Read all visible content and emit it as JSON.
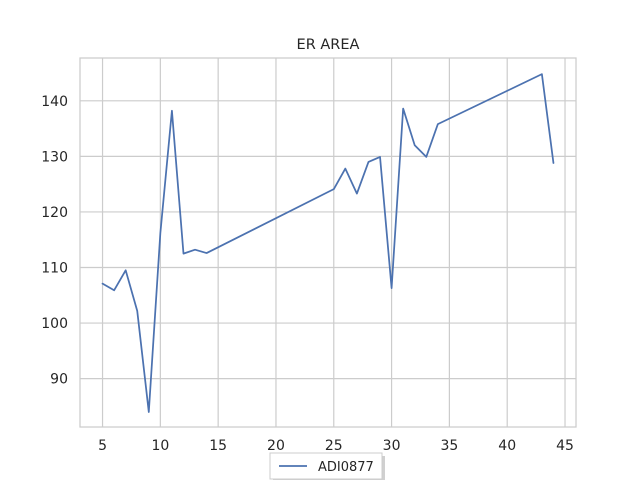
{
  "chart_data": {
    "type": "line",
    "title": "ER AREA",
    "xlabel": "",
    "ylabel": "",
    "xlim": [
      3.05,
      45.95
    ],
    "ylim": [
      81.3,
      147.7
    ],
    "xticks": [
      5,
      10,
      15,
      20,
      25,
      30,
      35,
      40,
      45
    ],
    "yticks": [
      90,
      100,
      110,
      120,
      130,
      140
    ],
    "grid": true,
    "legend_position": "bottom-center",
    "colors": {
      "series": "#4c72b0",
      "grid": "#cccccc",
      "axes": "#cccccc",
      "text": "#262626"
    },
    "series": [
      {
        "name": "ADI0877",
        "x": [
          5,
          6,
          7,
          8,
          9,
          10,
          11,
          12,
          13,
          14,
          25,
          26,
          27,
          28,
          29,
          30,
          31,
          32,
          33,
          34,
          43,
          44
        ],
        "values": [
          107.1,
          105.9,
          109.5,
          102.2,
          84.0,
          116.2,
          138.2,
          112.5,
          113.2,
          112.6,
          124.1,
          127.8,
          123.3,
          129.0,
          129.9,
          106.3,
          138.6,
          132.0,
          129.9,
          135.8,
          144.8,
          128.8
        ]
      }
    ]
  }
}
